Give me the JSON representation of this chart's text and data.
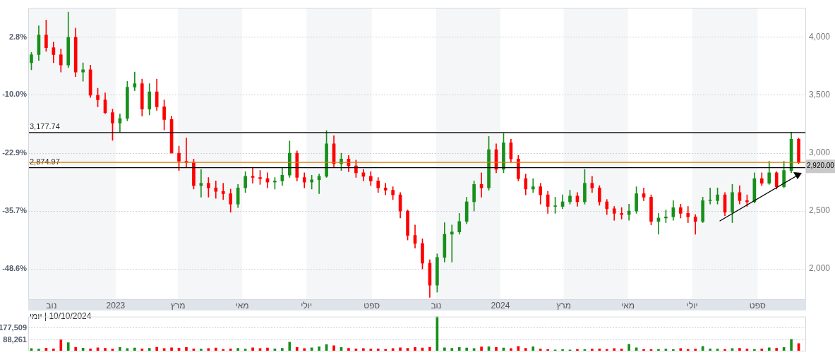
{
  "chart_data": [
    {
      "type": "candlestick",
      "x": [
        "2022-10-13",
        "2022-10-20",
        "2022-10-27",
        "2022-11-03",
        "2022-11-10",
        "2022-11-17",
        "2022-11-24",
        "2022-12-01",
        "2022-12-08",
        "2022-12-15",
        "2022-12-22",
        "2022-12-29",
        "2023-01-05",
        "2023-01-12",
        "2023-01-19",
        "2023-01-26",
        "2023-02-02",
        "2023-02-09",
        "2023-02-16",
        "2023-02-23",
        "2023-03-02",
        "2023-03-09",
        "2023-03-16",
        "2023-03-23",
        "2023-03-30",
        "2023-04-06",
        "2023-04-13",
        "2023-04-20",
        "2023-04-27",
        "2023-05-04",
        "2023-05-11",
        "2023-05-18",
        "2023-05-25",
        "2023-06-01",
        "2023-06-08",
        "2023-06-15",
        "2023-06-22",
        "2023-06-29",
        "2023-07-06",
        "2023-07-13",
        "2023-07-20",
        "2023-07-27",
        "2023-08-03",
        "2023-08-10",
        "2023-08-17",
        "2023-08-24",
        "2023-08-31",
        "2023-09-07",
        "2023-09-14",
        "2023-09-21",
        "2023-09-28",
        "2023-10-05",
        "2023-10-12",
        "2023-10-19",
        "2023-10-26",
        "2023-11-02",
        "2023-11-09",
        "2023-11-16",
        "2023-11-23",
        "2023-11-30",
        "2023-12-07",
        "2023-12-14",
        "2023-12-21",
        "2023-12-28",
        "2024-01-04",
        "2024-01-11",
        "2024-01-18",
        "2024-01-25",
        "2024-02-01",
        "2024-02-08",
        "2024-02-15",
        "2024-02-22",
        "2024-02-29",
        "2024-03-07",
        "2024-03-14",
        "2024-03-21",
        "2024-03-28",
        "2024-04-04",
        "2024-04-11",
        "2024-04-18",
        "2024-04-25",
        "2024-05-02",
        "2024-05-09",
        "2024-05-16",
        "2024-05-23",
        "2024-05-30",
        "2024-06-06",
        "2024-06-13",
        "2024-06-20",
        "2024-06-27",
        "2024-07-04",
        "2024-07-11",
        "2024-07-18",
        "2024-07-25",
        "2024-08-01",
        "2024-08-08",
        "2024-08-15",
        "2024-08-22",
        "2024-08-29",
        "2024-09-05",
        "2024-09-12",
        "2024-09-19",
        "2024-09-26",
        "2024-10-03",
        "2024-10-10"
      ],
      "ohlc": [
        [
          3780,
          3870,
          3720,
          3850
        ],
        [
          3850,
          4100,
          3800,
          4020
        ],
        [
          4020,
          4150,
          3880,
          3910
        ],
        [
          3910,
          3960,
          3780,
          3850
        ],
        [
          3850,
          3900,
          3700,
          3760
        ],
        [
          3760,
          4218,
          3740,
          4000
        ],
        [
          4000,
          4080,
          3660,
          3700
        ],
        [
          3700,
          3780,
          3620,
          3720
        ],
        [
          3720,
          3760,
          3480,
          3500
        ],
        [
          3500,
          3560,
          3400,
          3460
        ],
        [
          3460,
          3520,
          3340,
          3350
        ],
        [
          3350,
          3380,
          3110,
          3260
        ],
        [
          3260,
          3340,
          3180,
          3300
        ],
        [
          3300,
          3620,
          3280,
          3570
        ],
        [
          3570,
          3700,
          3540,
          3600
        ],
        [
          3600,
          3640,
          3320,
          3380
        ],
        [
          3380,
          3600,
          3330,
          3530
        ],
        [
          3530,
          3640,
          3370,
          3400
        ],
        [
          3400,
          3460,
          3200,
          3290
        ],
        [
          3290,
          3320,
          3000,
          3000
        ],
        [
          3000,
          3060,
          2850,
          2930
        ],
        [
          2930,
          3130,
          2880,
          2920
        ],
        [
          2920,
          2950,
          2690,
          2720
        ],
        [
          2720,
          2860,
          2620,
          2740
        ],
        [
          2740,
          2790,
          2620,
          2700
        ],
        [
          2700,
          2760,
          2610,
          2670
        ],
        [
          2670,
          2740,
          2600,
          2650
        ],
        [
          2650,
          2690,
          2490,
          2560
        ],
        [
          2560,
          2730,
          2530,
          2700
        ],
        [
          2700,
          2840,
          2660,
          2800
        ],
        [
          2800,
          2870,
          2740,
          2790
        ],
        [
          2790,
          2850,
          2730,
          2780
        ],
        [
          2780,
          2830,
          2700,
          2750
        ],
        [
          2750,
          2790,
          2690,
          2760
        ],
        [
          2760,
          2870,
          2720,
          2810
        ],
        [
          2810,
          3105,
          2790,
          3000
        ],
        [
          3000,
          3020,
          2760,
          2790
        ],
        [
          2790,
          2830,
          2700,
          2750
        ],
        [
          2750,
          2810,
          2690,
          2770
        ],
        [
          2770,
          2820,
          2650,
          2800
        ],
        [
          2800,
          3195,
          2790,
          3080
        ],
        [
          3080,
          3150,
          2880,
          2910
        ],
        [
          2910,
          3000,
          2850,
          2950
        ],
        [
          2950,
          2980,
          2840,
          2890
        ],
        [
          2890,
          2940,
          2790,
          2830
        ],
        [
          2830,
          2860,
          2760,
          2800
        ],
        [
          2800,
          2840,
          2720,
          2760
        ],
        [
          2760,
          2790,
          2660,
          2700
        ],
        [
          2700,
          2740,
          2640,
          2680
        ],
        [
          2680,
          2710,
          2600,
          2640
        ],
        [
          2640,
          2660,
          2440,
          2500
        ],
        [
          2500,
          2510,
          2250,
          2290
        ],
        [
          2290,
          2380,
          2180,
          2220
        ],
        [
          2220,
          2260,
          2000,
          2050
        ],
        [
          2050,
          2080,
          1755,
          1860
        ],
        [
          1860,
          2130,
          1800,
          2100
        ],
        [
          2100,
          2400,
          2060,
          2300
        ],
        [
          2300,
          2380,
          2060,
          2320
        ],
        [
          2320,
          2480,
          2300,
          2410
        ],
        [
          2410,
          2620,
          2390,
          2580
        ],
        [
          2580,
          2760,
          2500,
          2730
        ],
        [
          2730,
          2830,
          2620,
          2700
        ],
        [
          2700,
          3145,
          2680,
          3030
        ],
        [
          3030,
          3080,
          2830,
          2860
        ],
        [
          2860,
          3170,
          2830,
          3090
        ],
        [
          3090,
          3120,
          2920,
          2950
        ],
        [
          2950,
          2980,
          2760,
          2780
        ],
        [
          2780,
          2820,
          2640,
          2690
        ],
        [
          2690,
          2780,
          2660,
          2710
        ],
        [
          2710,
          2740,
          2560,
          2640
        ],
        [
          2640,
          2670,
          2480,
          2540
        ],
        [
          2540,
          2620,
          2480,
          2540
        ],
        [
          2540,
          2640,
          2520,
          2580
        ],
        [
          2580,
          2680,
          2560,
          2630
        ],
        [
          2630,
          2660,
          2540,
          2580
        ],
        [
          2580,
          2860,
          2560,
          2740
        ],
        [
          2740,
          2800,
          2660,
          2700
        ],
        [
          2700,
          2720,
          2550,
          2580
        ],
        [
          2580,
          2600,
          2470,
          2520
        ],
        [
          2520,
          2540,
          2420,
          2480
        ],
        [
          2480,
          2530,
          2430,
          2470
        ],
        [
          2470,
          2560,
          2420,
          2500
        ],
        [
          2500,
          2710,
          2480,
          2650
        ],
        [
          2650,
          2700,
          2590,
          2620
        ],
        [
          2620,
          2640,
          2380,
          2410
        ],
        [
          2410,
          2480,
          2300,
          2440
        ],
        [
          2440,
          2510,
          2400,
          2450
        ],
        [
          2450,
          2590,
          2420,
          2530
        ],
        [
          2530,
          2560,
          2440,
          2480
        ],
        [
          2480,
          2540,
          2400,
          2450
        ],
        [
          2450,
          2470,
          2300,
          2410
        ],
        [
          2410,
          2620,
          2400,
          2590
        ],
        [
          2590,
          2700,
          2560,
          2590
        ],
        [
          2590,
          2700,
          2560,
          2640
        ],
        [
          2640,
          2660,
          2460,
          2490
        ],
        [
          2490,
          2730,
          2400,
          2660
        ],
        [
          2660,
          2720,
          2560,
          2590
        ],
        [
          2590,
          2640,
          2540,
          2580
        ],
        [
          2580,
          2830,
          2570,
          2780
        ],
        [
          2780,
          2830,
          2720,
          2740
        ],
        [
          2740,
          2930,
          2730,
          2830
        ],
        [
          2830,
          2840,
          2690,
          2710
        ],
        [
          2710,
          2930,
          2700,
          2850
        ],
        [
          2850,
          3180,
          2830,
          3120
        ],
        [
          3120,
          3130,
          2910,
          2920
        ]
      ],
      "colors": [
        "#17901a",
        "#17901a",
        "#ff0000",
        "#ff0000",
        "#ff0000",
        "#17901a",
        "#ff0000",
        "#17901a",
        "#ff0000",
        "#ff0000",
        "#ff0000",
        "#ff0000",
        "#17901a",
        "#17901a",
        "#17901a",
        "#ff0000",
        "#17901a",
        "#ff0000",
        "#ff0000",
        "#ff0000",
        "#ff0000",
        "#ff0000",
        "#ff0000",
        "#17901a",
        "#ff0000",
        "#ff0000",
        "#ff0000",
        "#ff0000",
        "#17901a",
        "#17901a",
        "#ff0000",
        "#ff0000",
        "#ff0000",
        "#17901a",
        "#17901a",
        "#17901a",
        "#ff0000",
        "#ff0000",
        "#17901a",
        "#17901a",
        "#17901a",
        "#ff0000",
        "#17901a",
        "#ff0000",
        "#ff0000",
        "#ff0000",
        "#ff0000",
        "#ff0000",
        "#ff0000",
        "#ff0000",
        "#ff0000",
        "#ff0000",
        "#ff0000",
        "#ff0000",
        "#ff0000",
        "#17901a",
        "#17901a",
        "#17901a",
        "#17901a",
        "#17901a",
        "#17901a",
        "#ff0000",
        "#17901a",
        "#ff0000",
        "#17901a",
        "#ff0000",
        "#ff0000",
        "#ff0000",
        "#17901a",
        "#ff0000",
        "#ff0000",
        "#17901a",
        "#17901a",
        "#17901a",
        "#ff0000",
        "#17901a",
        "#ff0000",
        "#ff0000",
        "#ff0000",
        "#ff0000",
        "#ff0000",
        "#17901a",
        "#17901a",
        "#ff0000",
        "#ff0000",
        "#17901a",
        "#17901a",
        "#17901a",
        "#ff0000",
        "#ff0000",
        "#ff0000",
        "#17901a",
        "#17901a",
        "#17901a",
        "#ff0000",
        "#17901a",
        "#ff0000",
        "#ff0000",
        "#17901a",
        "#ff0000",
        "#17901a",
        "#ff0000",
        "#17901a",
        "#17901a",
        "#ff0000"
      ],
      "xlim": [
        "2022-10-10",
        "2024-10-17"
      ],
      "xticks": [
        {
          "value": "2022-11-01",
          "label": "נוב"
        },
        {
          "value": "2023-01-01",
          "label": "2023"
        },
        {
          "value": "2023-03-01",
          "label": "מרץ"
        },
        {
          "value": "2023-05-01",
          "label": "מאי"
        },
        {
          "value": "2023-07-01",
          "label": "יולי"
        },
        {
          "value": "2023-09-01",
          "label": "ספט"
        },
        {
          "value": "2023-11-01",
          "label": "נוב"
        },
        {
          "value": "2024-01-01",
          "label": "2024"
        },
        {
          "value": "2024-03-01",
          "label": "מרץ"
        },
        {
          "value": "2024-05-01",
          "label": "מאי"
        },
        {
          "value": "2024-07-01",
          "label": "יולי"
        },
        {
          "value": "2024-09-01",
          "label": "ספט"
        }
      ],
      "ylim": [
        1733,
        4254
      ],
      "yticks": [
        {
          "value": 2000,
          "label": "2,000"
        },
        {
          "value": 2500,
          "label": "2,500"
        },
        {
          "value": 3000,
          "label": "3,000"
        },
        {
          "value": 3500,
          "label": "3,500"
        },
        {
          "value": 4000,
          "label": "4,000"
        }
      ],
      "y2lim": [
        -55.5,
        9.3
      ],
      "y2ticks": [
        {
          "value": -48.6,
          "label": "-48.6%"
        },
        {
          "value": -35.7,
          "label": "-35.7%"
        },
        {
          "value": -22.9,
          "label": "-22.9%"
        },
        {
          "value": -10.0,
          "label": "-10.0%"
        },
        {
          "value": 2.8,
          "label": "2.8%"
        }
      ],
      "grid": "y",
      "bands": [
        {
          "axis": "x",
          "from": "2022-10-10",
          "to": "2023-01-01",
          "color": "#f5f6f8"
        },
        {
          "axis": "x",
          "from": "2023-03-01",
          "to": "2023-05-01",
          "color": "#f5f6f8"
        },
        {
          "axis": "x",
          "from": "2023-07-01",
          "to": "2023-09-01",
          "color": "#f5f6f8"
        },
        {
          "axis": "x",
          "from": "2023-11-01",
          "to": "2024-01-01",
          "color": "#f5f6f8"
        },
        {
          "axis": "x",
          "from": "2024-03-01",
          "to": "2024-05-01",
          "color": "#f5f6f8"
        },
        {
          "axis": "x",
          "from": "2024-07-01",
          "to": "2024-09-01",
          "color": "#f5f6f8"
        }
      ],
      "ref_lines": [
        {
          "axis": "y",
          "value": 3177.74,
          "label": "3,177.74",
          "color": "#000000"
        },
        {
          "axis": "y",
          "value": 2874.97,
          "label": "2,874.97",
          "color": "#000000"
        },
        {
          "axis": "y",
          "value": 2920,
          "label": "2,920.00",
          "color": "#d87a00"
        }
      ],
      "annotations": [
        "10/10/2024 | יומי"
      ]
    },
    {
      "type": "bar",
      "x": [
        "2022-10-13",
        "2022-10-20",
        "2022-10-27",
        "2022-11-03",
        "2022-11-10",
        "2022-11-17",
        "2022-11-24",
        "2022-12-01",
        "2022-12-08",
        "2022-12-15",
        "2022-12-22",
        "2022-12-29",
        "2023-01-05",
        "2023-01-12",
        "2023-01-19",
        "2023-01-26",
        "2023-02-02",
        "2023-02-09",
        "2023-02-16",
        "2023-02-23",
        "2023-03-02",
        "2023-03-09",
        "2023-03-16",
        "2023-03-23",
        "2023-03-30",
        "2023-04-06",
        "2023-04-13",
        "2023-04-20",
        "2023-04-27",
        "2023-05-04",
        "2023-05-11",
        "2023-05-18",
        "2023-05-25",
        "2023-06-01",
        "2023-06-08",
        "2023-06-15",
        "2023-06-22",
        "2023-06-29",
        "2023-07-06",
        "2023-07-13",
        "2023-07-20",
        "2023-07-27",
        "2023-08-03",
        "2023-08-10",
        "2023-08-17",
        "2023-08-24",
        "2023-08-31",
        "2023-09-07",
        "2023-09-14",
        "2023-09-21",
        "2023-09-28",
        "2023-10-05",
        "2023-10-12",
        "2023-10-19",
        "2023-10-26",
        "2023-11-02",
        "2023-11-09",
        "2023-11-16",
        "2023-11-23",
        "2023-11-30",
        "2023-12-07",
        "2023-12-14",
        "2023-12-21",
        "2023-12-28",
        "2024-01-04",
        "2024-01-11",
        "2024-01-18",
        "2024-01-25",
        "2024-02-01",
        "2024-02-08",
        "2024-02-15",
        "2024-02-22",
        "2024-02-29",
        "2024-03-07",
        "2024-03-14",
        "2024-03-21",
        "2024-03-28",
        "2024-04-04",
        "2024-04-11",
        "2024-04-18",
        "2024-04-25",
        "2024-05-02",
        "2024-05-09",
        "2024-05-16",
        "2024-05-23",
        "2024-05-30",
        "2024-06-06",
        "2024-06-13",
        "2024-06-20",
        "2024-06-27",
        "2024-07-04",
        "2024-07-11",
        "2024-07-18",
        "2024-07-25",
        "2024-08-01",
        "2024-08-08",
        "2024-08-15",
        "2024-08-22",
        "2024-08-29",
        "2024-09-05",
        "2024-09-12",
        "2024-09-19",
        "2024-09-26",
        "2024-10-03",
        "2024-10-10"
      ],
      "values": [
        22000,
        18000,
        25000,
        20000,
        88000,
        66000,
        30000,
        25000,
        20000,
        28000,
        24000,
        18000,
        30000,
        22000,
        26000,
        20000,
        24000,
        32000,
        22000,
        28000,
        25000,
        30000,
        20000,
        18000,
        22000,
        26000,
        15000,
        20000,
        24000,
        18000,
        28000,
        22000,
        26000,
        20000,
        24000,
        70000,
        30000,
        22000,
        28000,
        36000,
        52000,
        44000,
        30000,
        24000,
        20000,
        22000,
        18000,
        20000,
        16000,
        22000,
        28000,
        24000,
        30000,
        26000,
        32000,
        265000,
        28000,
        24000,
        30000,
        26000,
        22000,
        34000,
        36000,
        30000,
        26000,
        22000,
        38000,
        24000,
        36000,
        18000,
        14000,
        12000,
        14000,
        12000,
        16000,
        14000,
        18000,
        20000,
        16000,
        22000,
        18000,
        55000,
        28000,
        16000,
        14000,
        16000,
        18000,
        14000,
        22000,
        16000,
        18000,
        38000,
        20000,
        18000,
        16000,
        22000,
        24000,
        18000,
        16000,
        20000,
        28000,
        24000,
        30000,
        92000,
        60000
      ],
      "colors": [
        "#17901a",
        "#17901a",
        "#ff0000",
        "#ff0000",
        "#ff0000",
        "#17901a",
        "#ff0000",
        "#17901a",
        "#ff0000",
        "#ff0000",
        "#ff0000",
        "#ff0000",
        "#17901a",
        "#17901a",
        "#17901a",
        "#ff0000",
        "#17901a",
        "#ff0000",
        "#ff0000",
        "#ff0000",
        "#ff0000",
        "#ff0000",
        "#ff0000",
        "#17901a",
        "#ff0000",
        "#ff0000",
        "#ff0000",
        "#ff0000",
        "#17901a",
        "#17901a",
        "#ff0000",
        "#ff0000",
        "#ff0000",
        "#17901a",
        "#17901a",
        "#17901a",
        "#ff0000",
        "#ff0000",
        "#17901a",
        "#17901a",
        "#17901a",
        "#ff0000",
        "#17901a",
        "#ff0000",
        "#ff0000",
        "#ff0000",
        "#ff0000",
        "#ff0000",
        "#ff0000",
        "#ff0000",
        "#ff0000",
        "#ff0000",
        "#ff0000",
        "#ff0000",
        "#ff0000",
        "#17901a",
        "#17901a",
        "#17901a",
        "#17901a",
        "#17901a",
        "#17901a",
        "#ff0000",
        "#17901a",
        "#ff0000",
        "#17901a",
        "#ff0000",
        "#ff0000",
        "#ff0000",
        "#17901a",
        "#ff0000",
        "#ff0000",
        "#17901a",
        "#17901a",
        "#17901a",
        "#ff0000",
        "#17901a",
        "#ff0000",
        "#ff0000",
        "#ff0000",
        "#ff0000",
        "#ff0000",
        "#17901a",
        "#17901a",
        "#ff0000",
        "#ff0000",
        "#17901a",
        "#17901a",
        "#17901a",
        "#ff0000",
        "#ff0000",
        "#ff0000",
        "#17901a",
        "#17901a",
        "#17901a",
        "#ff0000",
        "#17901a",
        "#ff0000",
        "#ff0000",
        "#17901a",
        "#ff0000",
        "#17901a",
        "#ff0000",
        "#17901a",
        "#17901a",
        "#ff0000"
      ],
      "xlim": [
        "2022-10-10",
        "2024-10-17"
      ],
      "ylim": [
        0,
        265000
      ],
      "yticks": [
        {
          "value": 88261,
          "label": "88,261"
        },
        {
          "value": 177509,
          "label": "177,509"
        }
      ],
      "grid": "y",
      "tick_labels": "y"
    }
  ]
}
